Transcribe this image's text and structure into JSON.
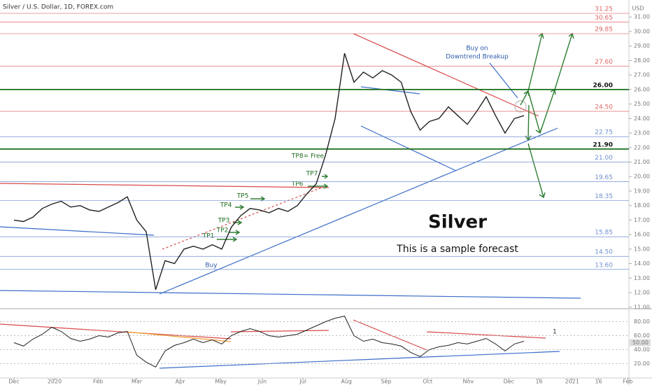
{
  "chart_data": {
    "type": "line",
    "title": "Silver / U.S. Dollar, 1D, FOREX.com",
    "currency": "USD",
    "symbol_label": "Silver",
    "subtitle": "This is a sample forecast",
    "buy_note": "Buy on",
    "buy_note_2": "Downtrend Breakup",
    "buy_label": "Buy",
    "tp_labels": [
      "TP1",
      "TP2",
      "TP3",
      "TP4",
      "TP5",
      "TP6",
      "TP7",
      "TP8= Free"
    ],
    "xlim": [
      -1.48,
      67.56
    ],
    "xticks": [
      {
        "value": 0,
        "label": "Dec"
      },
      {
        "value": 4.3,
        "label": "2020"
      },
      {
        "value": 8.9,
        "label": "Feb"
      },
      {
        "value": 13,
        "label": "Mar"
      },
      {
        "value": 17.6,
        "label": "Apr"
      },
      {
        "value": 21.9,
        "label": "May"
      },
      {
        "value": 26.3,
        "label": "Jun"
      },
      {
        "value": 30.6,
        "label": "Jul"
      },
      {
        "value": 35.2,
        "label": "Aug"
      },
      {
        "value": 39.4,
        "label": "Sep"
      },
      {
        "value": 43.8,
        "label": "Oct"
      },
      {
        "value": 48.1,
        "label": "Nov"
      },
      {
        "value": 52.4,
        "label": "Dec"
      },
      {
        "value": 55.6,
        "label": "16"
      },
      {
        "value": 59.1,
        "label": "2021"
      },
      {
        "value": 61.9,
        "label": "16"
      },
      {
        "value": 65,
        "label": "Feb"
      }
    ],
    "ylim": [
      10.94,
      32.17
    ],
    "yticks": [
      {
        "value": 11,
        "label": "11.00"
      },
      {
        "value": 12,
        "label": "12.00"
      },
      {
        "value": 13,
        "label": "13.00"
      },
      {
        "value": 14,
        "label": "14.00"
      },
      {
        "value": 15,
        "label": "15.00"
      },
      {
        "value": 16,
        "label": "16.00"
      },
      {
        "value": 17,
        "label": "17.00"
      },
      {
        "value": 18,
        "label": "18.00"
      },
      {
        "value": 19,
        "label": "19.00"
      },
      {
        "value": 20,
        "label": "20.00"
      },
      {
        "value": 21,
        "label": "21.00"
      },
      {
        "value": 22,
        "label": "22.00"
      },
      {
        "value": 23,
        "label": "23.00"
      },
      {
        "value": 24,
        "label": "24.00"
      },
      {
        "value": 25,
        "label": "25.00"
      },
      {
        "value": 26,
        "label": "26.00"
      },
      {
        "value": 27,
        "label": "27.00"
      },
      {
        "value": 28,
        "label": "28.00"
      },
      {
        "value": 29,
        "label": "29.00"
      },
      {
        "value": 30,
        "label": "30.00"
      },
      {
        "value": 31,
        "label": "31.00"
      }
    ],
    "levels": [
      {
        "value": 31.25,
        "label": "31.25",
        "color": "#e06666"
      },
      {
        "value": 30.65,
        "label": "30.65",
        "color": "#e06666"
      },
      {
        "value": 29.85,
        "label": "29.85",
        "color": "#e06666"
      },
      {
        "value": 27.6,
        "label": "27.60",
        "color": "#e06666"
      },
      {
        "value": 26,
        "label": "26.00",
        "color": "#1b6e1b"
      },
      {
        "value": 24.5,
        "label": "24.50",
        "color": "#e06666"
      },
      {
        "value": 22.75,
        "label": "22.75",
        "color": "#6f8fd0"
      },
      {
        "value": 21.9,
        "label": "21.90",
        "color": "#1b6e1b"
      },
      {
        "value": 21,
        "label": "21.00",
        "color": "#6f8fd0"
      },
      {
        "value": 19.65,
        "label": "19.65",
        "color": "#6f8fd0"
      },
      {
        "value": 18.35,
        "label": "18.35",
        "color": "#6f8fd0"
      },
      {
        "value": 15.85,
        "label": "15.85",
        "color": "#6f8fd0"
      },
      {
        "value": 14.5,
        "label": "14.50",
        "color": "#6f8fd0"
      },
      {
        "value": 13.6,
        "label": "13.60",
        "color": "#6f8fd0"
      }
    ],
    "series": [
      {
        "name": "Silver",
        "color": "#222222",
        "values": [
          17.0,
          16.9,
          17.2,
          17.8,
          18.1,
          18.3,
          17.9,
          18.0,
          17.7,
          17.6,
          17.9,
          18.2,
          18.6,
          17.0,
          16.2,
          12.2,
          14.2,
          14.0,
          15.0,
          15.2,
          15.0,
          15.3,
          15.0,
          16.5,
          17.3,
          17.8,
          17.7,
          17.5,
          17.8,
          17.6,
          18.0,
          18.8,
          19.5,
          21.5,
          24.0,
          28.5,
          26.5,
          27.2,
          26.8,
          27.3,
          27.0,
          26.5,
          24.5,
          23.2,
          23.8,
          24.0,
          24.8,
          24.2,
          23.6,
          24.5,
          25.5,
          24.2,
          23.0,
          24.0,
          24.2
        ]
      }
    ],
    "oscillator": {
      "ylim": [
        -0.7,
        97.6
      ],
      "yticks": [
        {
          "value": 20,
          "label": "20.00"
        },
        {
          "value": 40,
          "label": "40.00"
        },
        {
          "value": 60,
          "label": "60.00"
        },
        {
          "value": 80,
          "label": "80.00"
        }
      ],
      "current": {
        "value": 50,
        "label": "50.00"
      },
      "note": "1",
      "values": [
        50,
        45,
        55,
        62,
        72,
        66,
        56,
        52,
        55,
        60,
        58,
        64,
        66,
        32,
        22,
        15,
        38,
        46,
        50,
        55,
        50,
        54,
        48,
        60,
        66,
        70,
        66,
        60,
        58,
        60,
        62,
        68,
        74,
        80,
        85,
        88,
        60,
        52,
        55,
        50,
        48,
        45,
        36,
        30,
        40,
        44,
        46,
        50,
        48,
        52,
        56,
        48,
        38,
        48,
        52
      ]
    }
  }
}
